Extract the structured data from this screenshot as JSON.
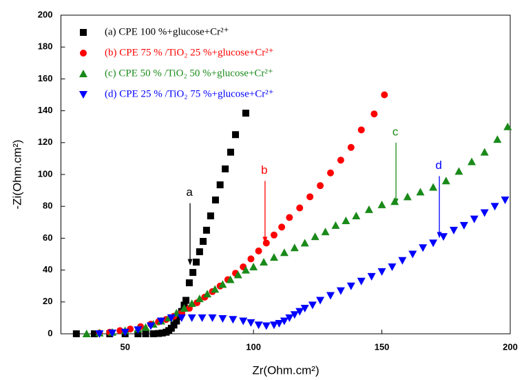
{
  "chart_data": {
    "type": "scatter",
    "x_label": "Zr(Ohm.cm²)",
    "y_label": "-Zi(Ohm.cm²)",
    "xlim": [
      25,
      200
    ],
    "xticks": [
      50,
      100,
      150,
      200
    ],
    "ylim": [
      0,
      200
    ],
    "yticks": [
      0,
      20,
      40,
      60,
      80,
      100,
      120,
      140,
      160,
      180,
      200
    ],
    "grid": false,
    "legend": "upper left",
    "series": [
      {
        "name": "(a) CPE 100 %+glucose+Cr²⁺",
        "color": "#000000",
        "marker": "square",
        "x": [
          31,
          38,
          44,
          50,
          55,
          58,
          61,
          63,
          64.5,
          66,
          67,
          68,
          69,
          70,
          71,
          72,
          73,
          73.7,
          75,
          76.4,
          77.7,
          79,
          80.4,
          81.7,
          83.3,
          85.2,
          87,
          89,
          91.1,
          93,
          97
        ],
        "values": [
          0,
          0,
          0,
          0,
          0,
          0,
          0,
          0.2,
          0.5,
          1,
          2,
          3.5,
          5.5,
          8,
          11,
          14,
          18,
          21,
          32,
          38.5,
          45,
          51.5,
          58,
          65,
          74,
          84,
          93.5,
          103.5,
          114,
          125,
          138.5
        ]
      },
      {
        "name": "(b) CPE 75 % /TiO₂ 25 %+glucose+Cr²⁺",
        "color": "#ff0000",
        "marker": "circle",
        "x": [
          40,
          44,
          48,
          52,
          56,
          60,
          63,
          66,
          69,
          72,
          75,
          78,
          81,
          84,
          87,
          90,
          93,
          96,
          99,
          102,
          105,
          108,
          111,
          114,
          118,
          122,
          126,
          130,
          134,
          138,
          142,
          147,
          151
        ],
        "values": [
          0.5,
          1,
          2,
          3,
          4.5,
          6,
          7.5,
          9,
          11,
          13,
          16,
          19.5,
          23,
          26.5,
          30,
          34,
          38,
          42,
          47,
          52,
          57,
          62,
          67,
          73,
          79,
          86,
          93,
          101,
          109,
          117,
          128,
          138,
          150
        ]
      },
      {
        "name": "(c) CPE 50 % /TiO₂ 50 %+glucose+Cr²⁺",
        "color": "#1a8a1a",
        "marker": "triangle-up",
        "x": [
          35,
          40,
          45,
          50,
          55,
          58,
          61,
          64,
          67,
          70,
          73,
          76,
          79,
          82,
          85,
          88,
          91,
          94,
          97,
          100,
          104,
          108,
          112,
          116,
          120,
          124,
          128,
          132,
          136,
          140,
          145,
          150,
          155,
          160,
          165,
          170,
          175,
          180,
          185,
          190,
          195,
          199
        ],
        "values": [
          0,
          0.5,
          1,
          2,
          3,
          4,
          6,
          8,
          10,
          13,
          16,
          19,
          22,
          25,
          28,
          31,
          34,
          37,
          40,
          42,
          45,
          48,
          51,
          54,
          57,
          61,
          64,
          68,
          71,
          74,
          78,
          81,
          83,
          86,
          89,
          92,
          96,
          102,
          108,
          114,
          122,
          130
        ]
      },
      {
        "name": "(d) CPE 25 % /TiO₂ 75 %+glucose+Cr²⁺",
        "color": "#0000ff",
        "marker": "triangle-down",
        "x": [
          40,
          45,
          50,
          55,
          60,
          64,
          68,
          72,
          76,
          80,
          84,
          88,
          92,
          96,
          99,
          102,
          105,
          108,
          110,
          112,
          114,
          116,
          118,
          120,
          123,
          126,
          130,
          134,
          138,
          142,
          146,
          150,
          154,
          158,
          162,
          166,
          170,
          174,
          178,
          182,
          186,
          190,
          194,
          198
        ],
        "values": [
          0,
          0.5,
          1,
          2.5,
          5,
          8,
          10,
          10,
          10,
          10,
          10,
          9.5,
          9,
          8,
          7,
          5.5,
          5,
          5.5,
          6.5,
          8,
          10,
          12,
          14,
          16,
          18,
          21,
          24,
          27,
          30,
          33,
          36,
          39,
          42,
          46,
          50,
          54,
          57,
          61,
          65,
          68,
          72,
          76,
          80,
          84
        ]
      }
    ],
    "annotations": [
      {
        "text": "a",
        "x": 75.3,
        "y": 43,
        "color": "#000000"
      },
      {
        "text": "b",
        "x": 104.5,
        "y": 57,
        "color": "#ff0000"
      },
      {
        "text": "c",
        "x": 155.5,
        "y": 81,
        "color": "#1a8a1a"
      },
      {
        "text": "d",
        "x": 172.4,
        "y": 60,
        "color": "#0000ff"
      }
    ]
  }
}
